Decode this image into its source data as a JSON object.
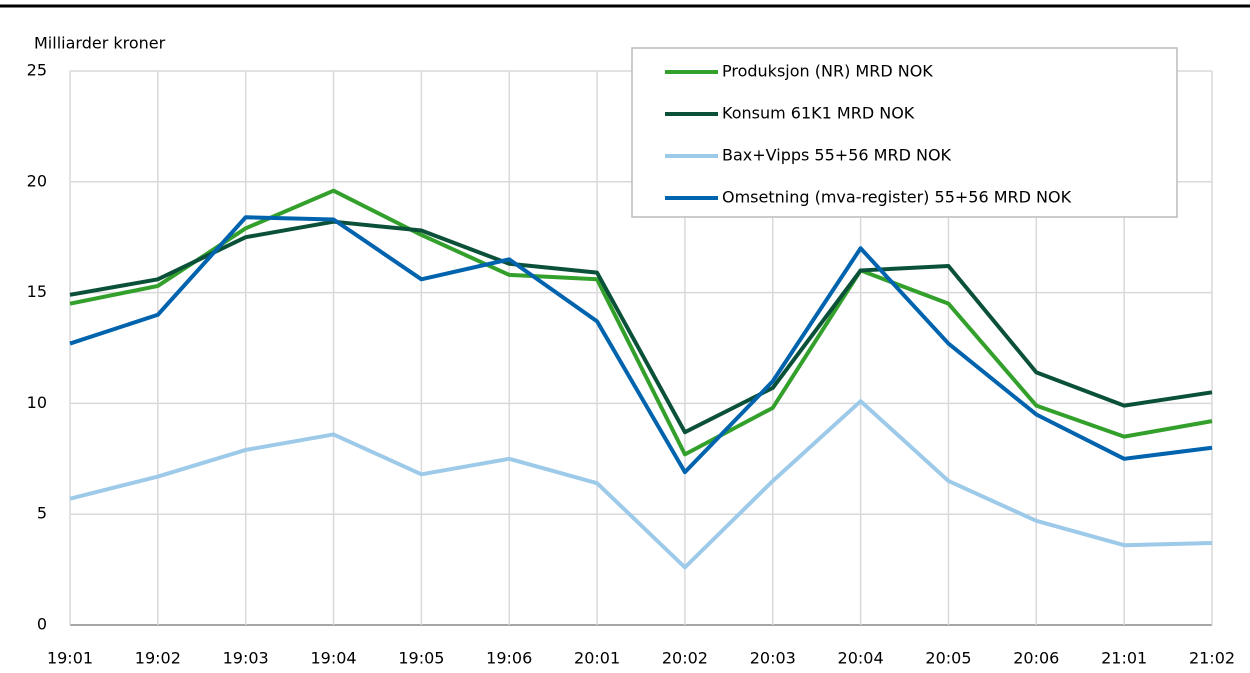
{
  "chart_data": {
    "type": "line",
    "y_label": "Milliarder kroner",
    "categories": [
      "19:01",
      "19:02",
      "19:03",
      "19:04",
      "19:05",
      "19:06",
      "20:01",
      "20:02",
      "20:03",
      "20:04",
      "20:05",
      "20:06",
      "21:01",
      "21:02"
    ],
    "series": [
      {
        "name": "Produksjon (NR) MRD NOK",
        "color": "#33a02c",
        "values": [
          14.5,
          15.3,
          17.9,
          19.6,
          17.6,
          15.8,
          15.6,
          7.7,
          9.8,
          16.0,
          14.5,
          9.9,
          8.5,
          9.2
        ]
      },
      {
        "name": "Konsum 61K1 MRD NOK",
        "color": "#0b5139",
        "values": [
          14.9,
          15.6,
          17.5,
          18.2,
          17.8,
          16.3,
          15.9,
          8.7,
          10.7,
          16.0,
          16.2,
          11.4,
          9.9,
          10.5
        ]
      },
      {
        "name": "Bax+Vipps 55+56 MRD NOK",
        "color": "#9ecae9",
        "values": [
          5.7,
          6.7,
          7.9,
          8.6,
          6.8,
          7.5,
          6.4,
          2.6,
          6.5,
          10.1,
          6.5,
          4.7,
          3.6,
          3.7
        ]
      },
      {
        "name": "Omsetning (mva-register) 55+56 MRD NOK",
        "color": "#0063ae",
        "values": [
          12.7,
          14.0,
          18.4,
          18.3,
          15.6,
          16.5,
          13.7,
          6.9,
          11.0,
          17.0,
          12.7,
          9.5,
          7.5,
          8.0
        ]
      }
    ],
    "ylim": [
      0,
      25
    ],
    "yticks": [
      0,
      5,
      10,
      15,
      20,
      25
    ],
    "grid": true,
    "legend": "upper right"
  }
}
